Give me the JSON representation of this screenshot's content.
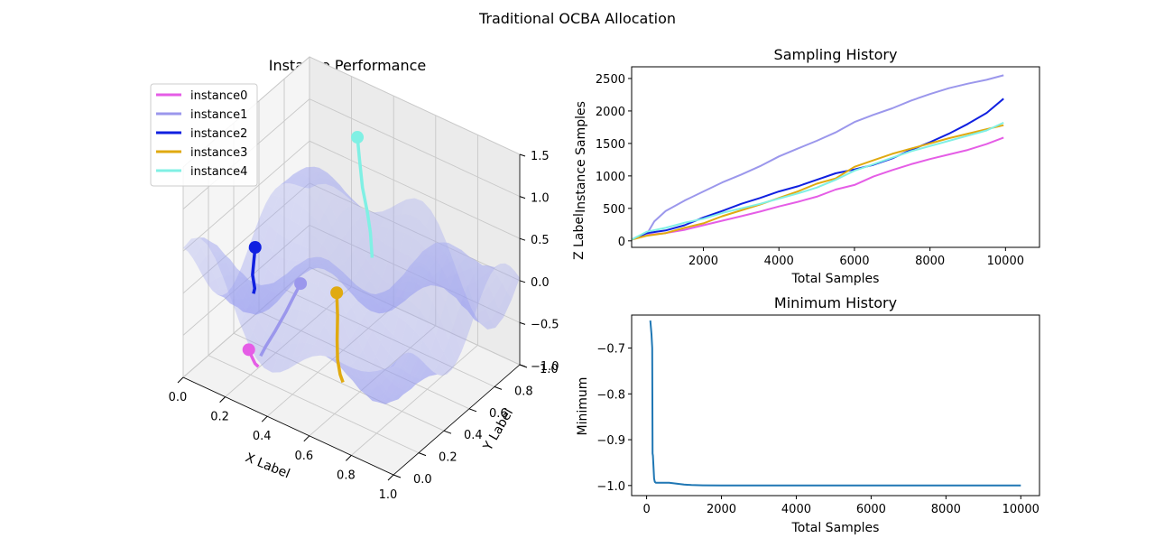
{
  "figure": {
    "title": "Traditional OCBA Allocation"
  },
  "chart_data": [
    {
      "id": "instance-performance",
      "type": "surface3d",
      "title": "Instance Performance",
      "xlabel": "X Label",
      "ylabel": "Y Label",
      "zlabel": "Z Label",
      "xlim": [
        0,
        1
      ],
      "ylim": [
        0,
        1
      ],
      "zlim": [
        -1,
        1.5
      ],
      "xticks": [
        "0.0",
        "0.2",
        "0.4",
        "0.6",
        "0.8",
        "1.0"
      ],
      "yticks": [
        "0.0",
        "0.2",
        "0.4",
        "0.6",
        "0.8",
        "1.0"
      ],
      "zticks": [
        "−1.0",
        "−0.5",
        "0.0",
        "0.5",
        "1.0",
        "1.5"
      ],
      "legend": {
        "placement": "upper-left"
      },
      "series": [
        {
          "name": "instance0",
          "color": "#e55de6",
          "path": [
            [
              0.24,
              0.12,
              -0.55
            ],
            [
              0.25,
              0.12,
              -0.6
            ],
            [
              0.27,
              0.12,
              -0.68
            ],
            [
              0.28,
              0.13,
              -0.72
            ]
          ]
        },
        {
          "name": "instance1",
          "color": "#9b97ec",
          "path": [
            [
              0.33,
              0.38,
              0.0
            ],
            [
              0.31,
              0.36,
              -0.15
            ],
            [
              0.29,
              0.33,
              -0.32
            ],
            [
              0.27,
              0.28,
              -0.5
            ],
            [
              0.26,
              0.22,
              -0.62
            ],
            [
              0.26,
              0.18,
              -0.68
            ]
          ]
        },
        {
          "name": "instance2",
          "color": "#1020e0",
          "path": [
            [
              0.15,
              0.32,
              0.3
            ],
            [
              0.15,
              0.31,
              0.15
            ],
            [
              0.15,
              0.3,
              0.0
            ],
            [
              0.16,
              0.3,
              -0.15
            ],
            [
              0.16,
              0.29,
              -0.2
            ]
          ]
        },
        {
          "name": "instance3",
          "color": "#e0aa10",
          "path": [
            [
              0.49,
              0.4,
              0.05
            ],
            [
              0.5,
              0.39,
              -0.2
            ],
            [
              0.51,
              0.37,
              -0.45
            ],
            [
              0.53,
              0.34,
              -0.62
            ],
            [
              0.56,
              0.31,
              -0.72
            ],
            [
              0.58,
              0.3,
              -0.78
            ]
          ]
        },
        {
          "name": "instance4",
          "color": "#80f0e4",
          "path": [
            [
              0.42,
              0.68,
              1.45
            ],
            [
              0.43,
              0.68,
              1.2
            ],
            [
              0.45,
              0.67,
              0.9
            ],
            [
              0.48,
              0.66,
              0.65
            ],
            [
              0.5,
              0.65,
              0.45
            ],
            [
              0.52,
              0.63,
              0.2
            ]
          ]
        }
      ]
    },
    {
      "id": "sampling-history",
      "type": "line",
      "title": "Sampling History",
      "xlabel": "Total Samples",
      "ylabel": "Instance Samples",
      "xlim": [
        100,
        10900
      ],
      "ylim": [
        -100,
        2680
      ],
      "xticks": [
        2000,
        4000,
        6000,
        8000,
        10000
      ],
      "yticks": [
        0,
        500,
        1000,
        1500,
        2000,
        2500
      ],
      "series": [
        {
          "name": "instance0",
          "color": "#e55de6",
          "x": [
            100,
            500,
            1000,
            1500,
            2000,
            2500,
            3000,
            3500,
            4000,
            4500,
            5000,
            5500,
            6000,
            6500,
            7000,
            7500,
            8000,
            8500,
            9000,
            9500,
            9950
          ],
          "y": [
            20,
            90,
            120,
            170,
            240,
            310,
            380,
            450,
            530,
            600,
            680,
            790,
            860,
            990,
            1090,
            1180,
            1260,
            1330,
            1400,
            1490,
            1590
          ]
        },
        {
          "name": "instance1",
          "color": "#9b97ec",
          "x": [
            100,
            500,
            700,
            1000,
            1500,
            2000,
            2500,
            3000,
            3500,
            4000,
            4500,
            5000,
            5500,
            6000,
            6500,
            7000,
            7500,
            8000,
            8500,
            9000,
            9500,
            9950
          ],
          "y": [
            20,
            100,
            300,
            460,
            620,
            760,
            900,
            1020,
            1150,
            1300,
            1420,
            1540,
            1670,
            1830,
            1940,
            2040,
            2160,
            2260,
            2350,
            2420,
            2480,
            2550
          ]
        },
        {
          "name": "instance2",
          "color": "#1020e0",
          "x": [
            100,
            500,
            1000,
            1500,
            2000,
            2500,
            3000,
            3500,
            4000,
            4500,
            5000,
            5500,
            6000,
            6500,
            7000,
            7500,
            8000,
            8500,
            9000,
            9500,
            9950
          ],
          "y": [
            20,
            120,
            160,
            240,
            360,
            460,
            570,
            660,
            760,
            840,
            940,
            1040,
            1100,
            1170,
            1270,
            1400,
            1520,
            1650,
            1800,
            1970,
            2190
          ]
        },
        {
          "name": "instance3",
          "color": "#e0aa10",
          "x": [
            100,
            500,
            1000,
            1500,
            2000,
            2500,
            3000,
            3500,
            4000,
            4500,
            5000,
            5500,
            6000,
            6500,
            7000,
            7500,
            8000,
            8500,
            9000,
            9500,
            9950
          ],
          "y": [
            20,
            80,
            120,
            200,
            270,
            380,
            470,
            560,
            660,
            760,
            880,
            960,
            1140,
            1240,
            1340,
            1420,
            1500,
            1580,
            1650,
            1720,
            1780
          ]
        },
        {
          "name": "instance4",
          "color": "#80f0e4",
          "x": [
            100,
            500,
            1000,
            1500,
            2000,
            2500,
            3000,
            3500,
            4000,
            4500,
            5000,
            5500,
            6000,
            6500,
            7000,
            7500,
            8000,
            8500,
            9000,
            9500,
            9950
          ],
          "y": [
            20,
            140,
            200,
            280,
            340,
            430,
            500,
            570,
            650,
            730,
            820,
            940,
            1080,
            1180,
            1280,
            1380,
            1460,
            1540,
            1620,
            1700,
            1820
          ]
        }
      ]
    },
    {
      "id": "minimum-history",
      "type": "line",
      "title": "Minimum History",
      "xlabel": "Total Samples",
      "ylabel": "Minimum",
      "xlim": [
        -400,
        10500
      ],
      "ylim": [
        -1.022,
        -0.628
      ],
      "xticks": [
        0,
        2000,
        4000,
        6000,
        8000,
        10000
      ],
      "yticks": [
        -1.0,
        -0.9,
        -0.8,
        -0.7
      ],
      "yticklabels": [
        "−1.0",
        "−0.9",
        "−0.8",
        "−0.7"
      ],
      "series": [
        {
          "name": "",
          "color": "#1f77b4",
          "x": [
            100,
            130,
            150,
            160,
            170,
            200,
            220,
            250,
            400,
            600,
            800,
            1000,
            1200,
            1500,
            2000,
            3000,
            5000,
            7000,
            9000,
            10000
          ],
          "y": [
            -0.64,
            -0.67,
            -0.7,
            -0.93,
            -0.935,
            -0.985,
            -0.992,
            -0.994,
            -0.994,
            -0.994,
            -0.996,
            -0.998,
            -0.999,
            -0.9995,
            -1.0,
            -1.0,
            -1.0,
            -1.0,
            -1.0,
            -1.0
          ]
        }
      ]
    }
  ]
}
